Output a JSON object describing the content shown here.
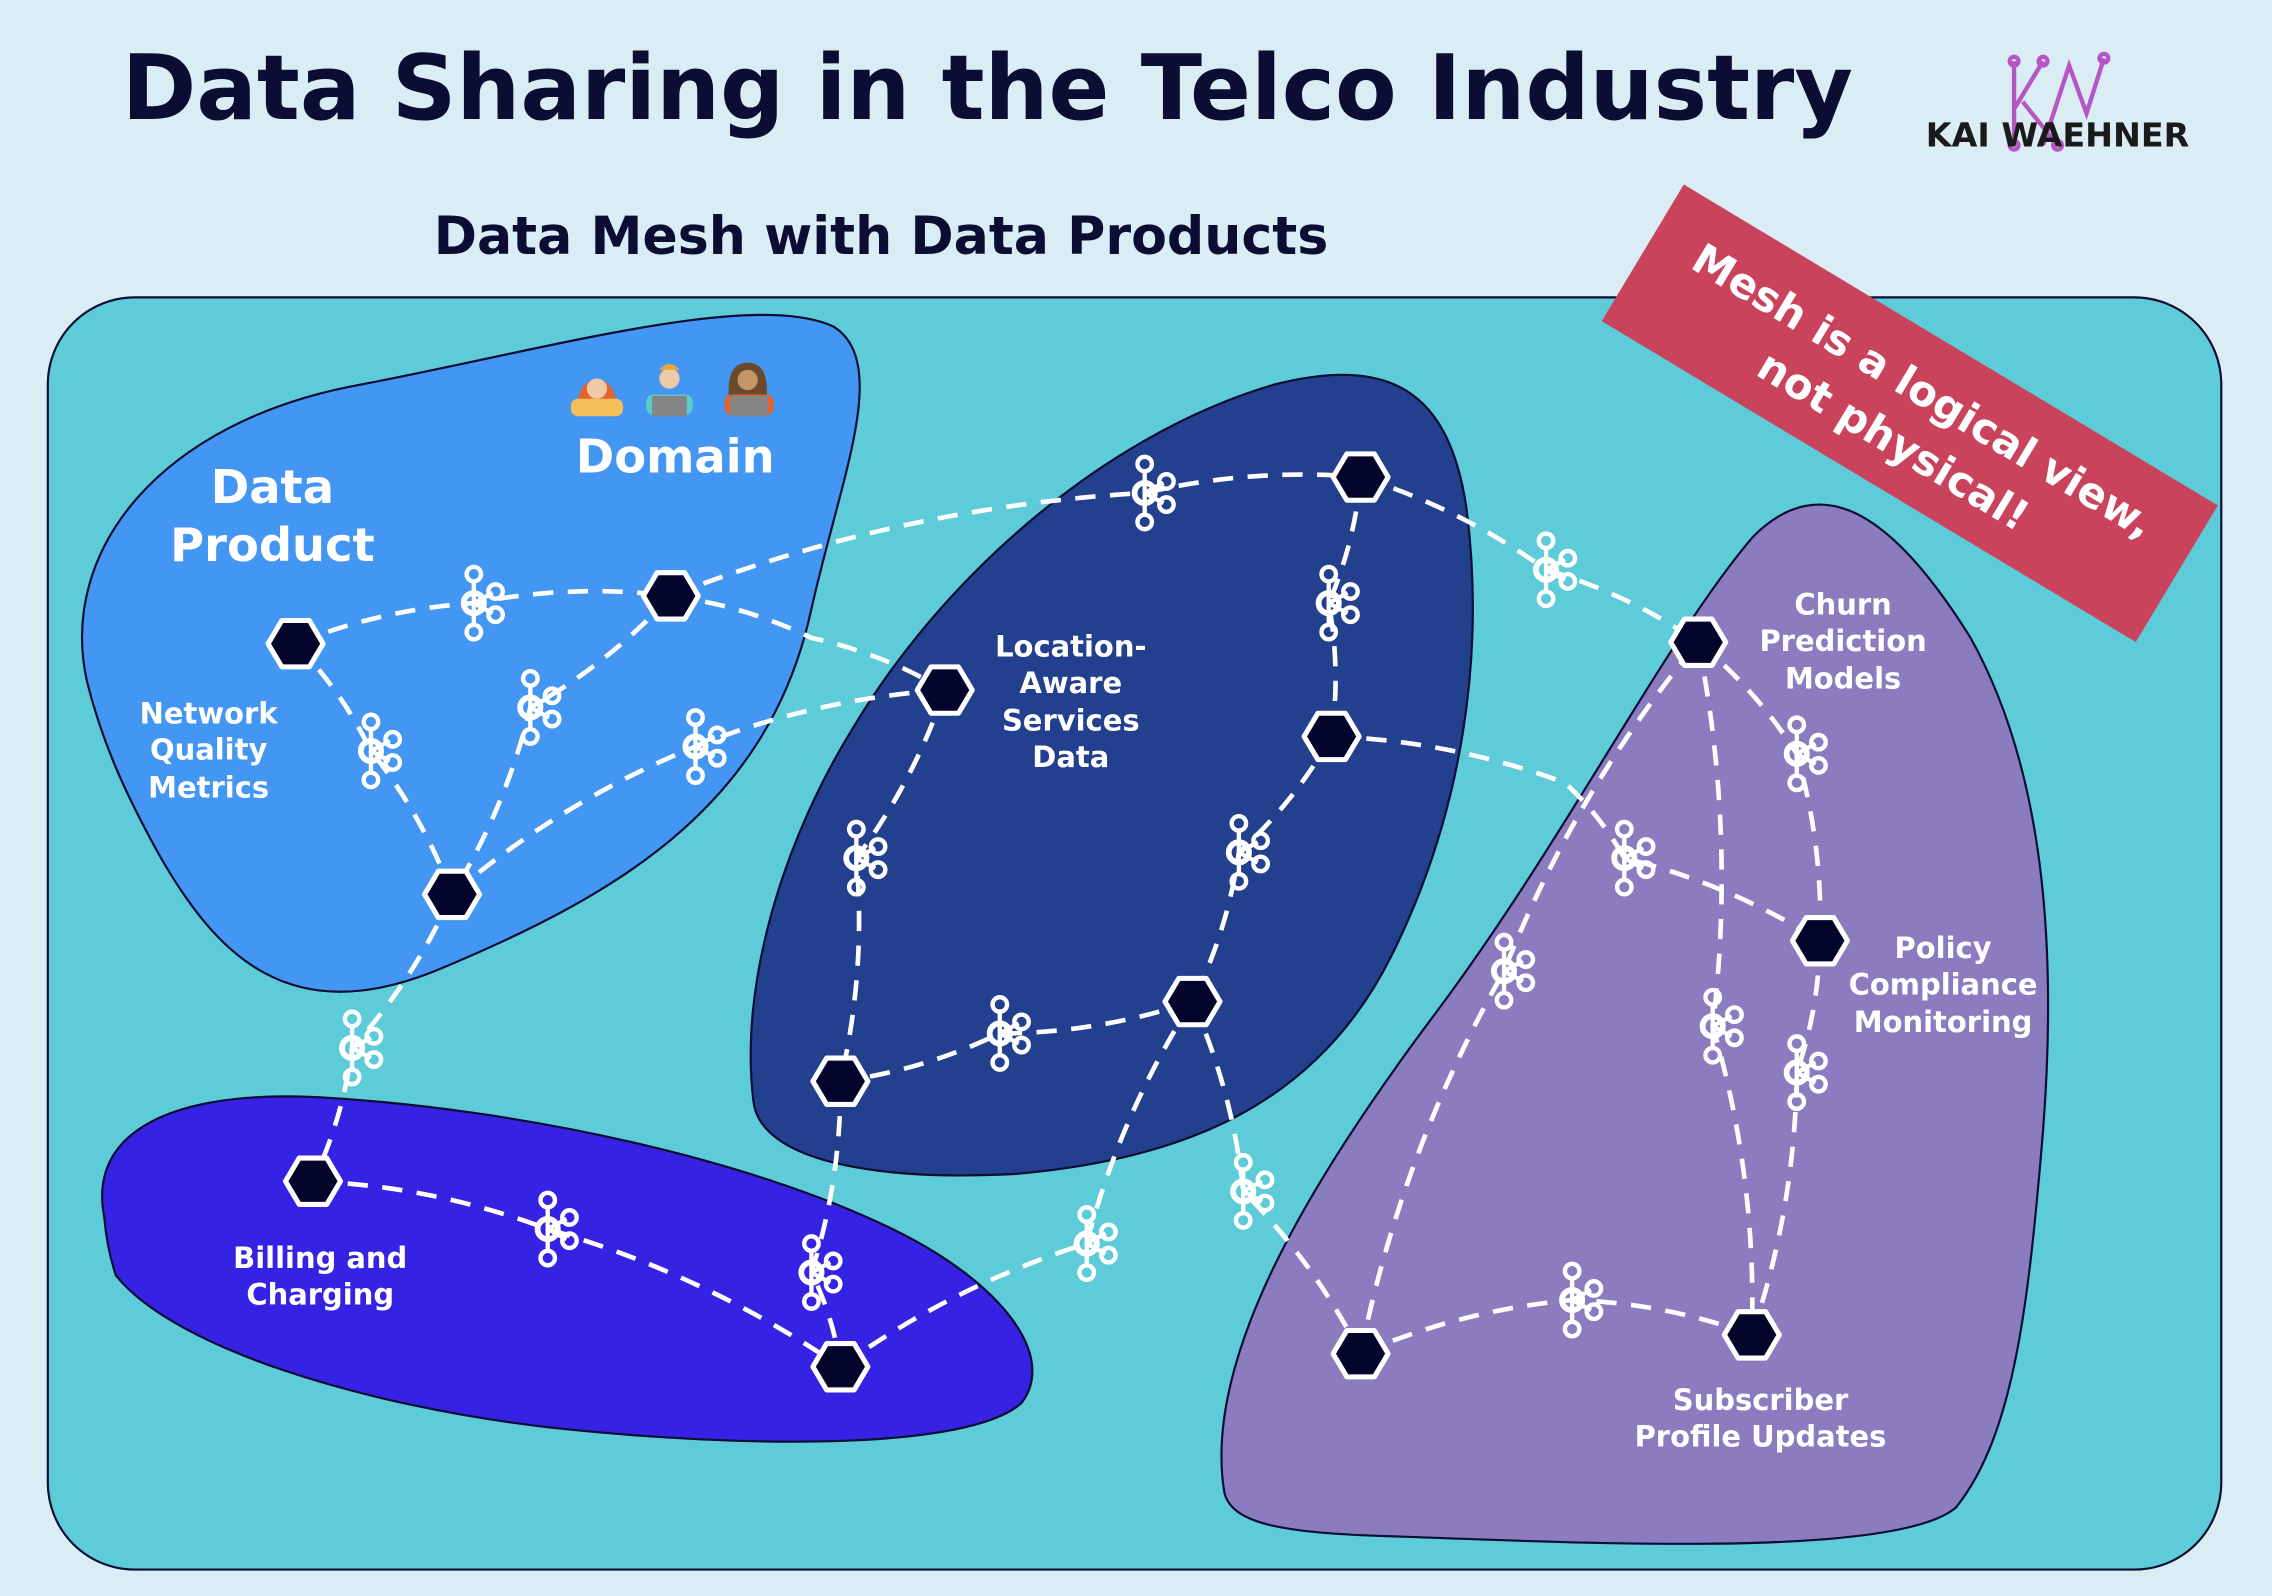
{
  "header": {
    "title": "Data Sharing in the Telco Industry",
    "subtitle": "Data Mesh with Data Products"
  },
  "logo": {
    "monogram": "KW",
    "text": "KAI WAEHNER",
    "color": "#b655c4"
  },
  "banner": {
    "line1": "Mesh is a logical view,",
    "line2": "not physical!",
    "color": "#c9435c"
  },
  "legend": {
    "data_product": [
      "Data",
      "Product"
    ],
    "domain": "Domain"
  },
  "domains": {
    "network": {
      "label": [
        "Network",
        "Quality",
        "Metrics"
      ],
      "color": "#4496f3"
    },
    "location": {
      "label": [
        "Location-",
        "Aware",
        "Services",
        "Data"
      ],
      "color": "#23408f"
    },
    "billing": {
      "label": [
        "Billing and",
        "Charging"
      ],
      "color": "#3622e3"
    },
    "churn": {
      "label": [
        "Churn",
        "Prediction",
        "Models"
      ],
      "color": "#8b7cbf"
    },
    "policy": {
      "label": [
        "Policy",
        "Compliance",
        "Monitoring"
      ]
    },
    "subscriber": {
      "label": [
        "Subscriber",
        "Profile Updates"
      ]
    }
  },
  "colors": {
    "background": "#daedf5",
    "mesh": "#5ecbd8",
    "node": "#04052a",
    "title": "#0b0d33"
  },
  "icons": [
    "kafka-icon",
    "data-product-node-icon",
    "team-people-icon"
  ]
}
